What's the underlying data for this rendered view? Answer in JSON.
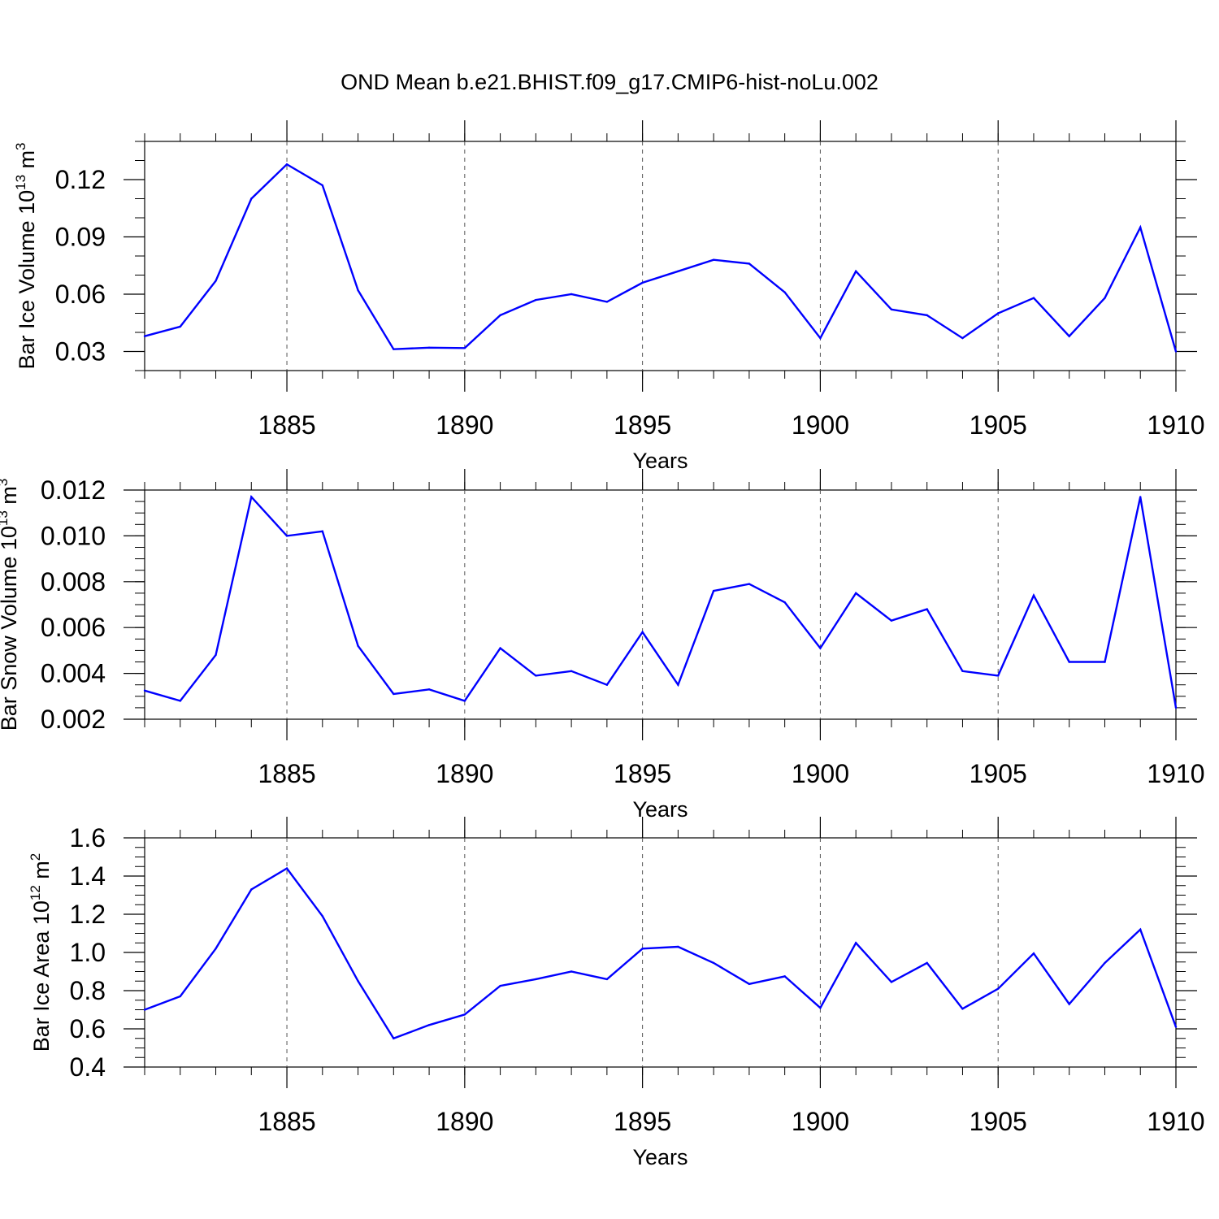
{
  "chart_data": [
    {
      "type": "line",
      "title": "OND Mean b.e21.BHIST.f09_g17.CMIP6-hist-noLu.002",
      "xlabel": "Years",
      "ylabel_main": "Bar Ice Volume 10",
      "ylabel_exp": "13",
      "ylabel_unit": " m",
      "ylabel_unit_exp": "3",
      "xlim": [
        1881,
        1910
      ],
      "ylim": [
        0.02,
        0.14
      ],
      "xticks": [
        1885,
        1890,
        1895,
        1900,
        1905,
        1910
      ],
      "yticks": [
        0.03,
        0.06,
        0.09,
        0.12
      ],
      "ytick_labels": [
        "0.03",
        "0.06",
        "0.09",
        "0.12"
      ],
      "yminor_step": 0.01,
      "grid_x": true,
      "line_color": "#0000ff",
      "series": [
        {
          "name": "Bar Ice Volume",
          "x": [
            1881,
            1882,
            1883,
            1884,
            1885,
            1886,
            1887,
            1888,
            1889,
            1890,
            1891,
            1892,
            1893,
            1894,
            1895,
            1896,
            1897,
            1898,
            1899,
            1900,
            1901,
            1902,
            1903,
            1904,
            1905,
            1906,
            1907,
            1908,
            1909,
            1910
          ],
          "values": [
            0.038,
            0.043,
            0.067,
            0.11,
            0.128,
            0.117,
            0.062,
            0.0312,
            0.032,
            0.0318,
            0.049,
            0.057,
            0.06,
            0.056,
            0.066,
            0.072,
            0.078,
            0.076,
            0.061,
            0.037,
            0.072,
            0.052,
            0.049,
            0.037,
            0.05,
            0.058,
            0.038,
            0.058,
            0.095,
            0.03
          ]
        }
      ]
    },
    {
      "type": "line",
      "xlabel": "Years",
      "ylabel_main": "Bar Snow Volume 10",
      "ylabel_exp": "13",
      "ylabel_unit": " m",
      "ylabel_unit_exp": "3",
      "xlim": [
        1881,
        1910
      ],
      "ylim": [
        0.002,
        0.012
      ],
      "xticks": [
        1885,
        1890,
        1895,
        1900,
        1905,
        1910
      ],
      "yticks": [
        0.002,
        0.004,
        0.006,
        0.008,
        0.01,
        0.012
      ],
      "ytick_labels": [
        "0.002",
        "0.004",
        "0.006",
        "0.008",
        "0.010",
        "0.012"
      ],
      "yminor_step": 0.0005,
      "grid_x": true,
      "line_color": "#0000ff",
      "series": [
        {
          "name": "Bar Snow Volume",
          "x": [
            1881,
            1882,
            1883,
            1884,
            1885,
            1886,
            1887,
            1888,
            1889,
            1890,
            1891,
            1892,
            1893,
            1894,
            1895,
            1896,
            1897,
            1898,
            1899,
            1900,
            1901,
            1902,
            1903,
            1904,
            1905,
            1906,
            1907,
            1908,
            1909,
            1910
          ],
          "values": [
            0.00325,
            0.0028,
            0.0048,
            0.0117,
            0.01,
            0.0102,
            0.0052,
            0.0031,
            0.0033,
            0.0028,
            0.0051,
            0.0039,
            0.0041,
            0.0035,
            0.0058,
            0.0035,
            0.0076,
            0.0079,
            0.0071,
            0.0051,
            0.0075,
            0.0063,
            0.0068,
            0.0041,
            0.0039,
            0.0074,
            0.0045,
            0.0045,
            0.0117,
            0.0025
          ]
        }
      ]
    },
    {
      "type": "line",
      "xlabel": "Years",
      "ylabel_main": "Bar Ice Area 10",
      "ylabel_exp": "12",
      "ylabel_unit": " m",
      "ylabel_unit_exp": "2",
      "xlim": [
        1881,
        1910
      ],
      "ylim": [
        0.4,
        1.6
      ],
      "xticks": [
        1885,
        1890,
        1895,
        1900,
        1905,
        1910
      ],
      "yticks": [
        0.4,
        0.6,
        0.8,
        1.0,
        1.2,
        1.4,
        1.6
      ],
      "ytick_labels": [
        "0.4",
        "0.6",
        "0.8",
        "1.0",
        "1.2",
        "1.4",
        "1.6"
      ],
      "yminor_step": 0.05,
      "grid_x": true,
      "line_color": "#0000ff",
      "series": [
        {
          "name": "Bar Ice Area",
          "x": [
            1881,
            1882,
            1883,
            1884,
            1885,
            1886,
            1887,
            1888,
            1889,
            1890,
            1891,
            1892,
            1893,
            1894,
            1895,
            1896,
            1897,
            1898,
            1899,
            1900,
            1901,
            1902,
            1903,
            1904,
            1905,
            1906,
            1907,
            1908,
            1909,
            1910
          ],
          "values": [
            0.7,
            0.77,
            1.02,
            1.33,
            1.44,
            1.19,
            0.85,
            0.55,
            0.62,
            0.675,
            0.825,
            0.86,
            0.9,
            0.86,
            1.02,
            1.03,
            0.945,
            0.835,
            0.875,
            0.71,
            1.05,
            0.845,
            0.945,
            0.705,
            0.81,
            0.995,
            0.73,
            0.945,
            1.12,
            0.61
          ]
        }
      ]
    }
  ]
}
